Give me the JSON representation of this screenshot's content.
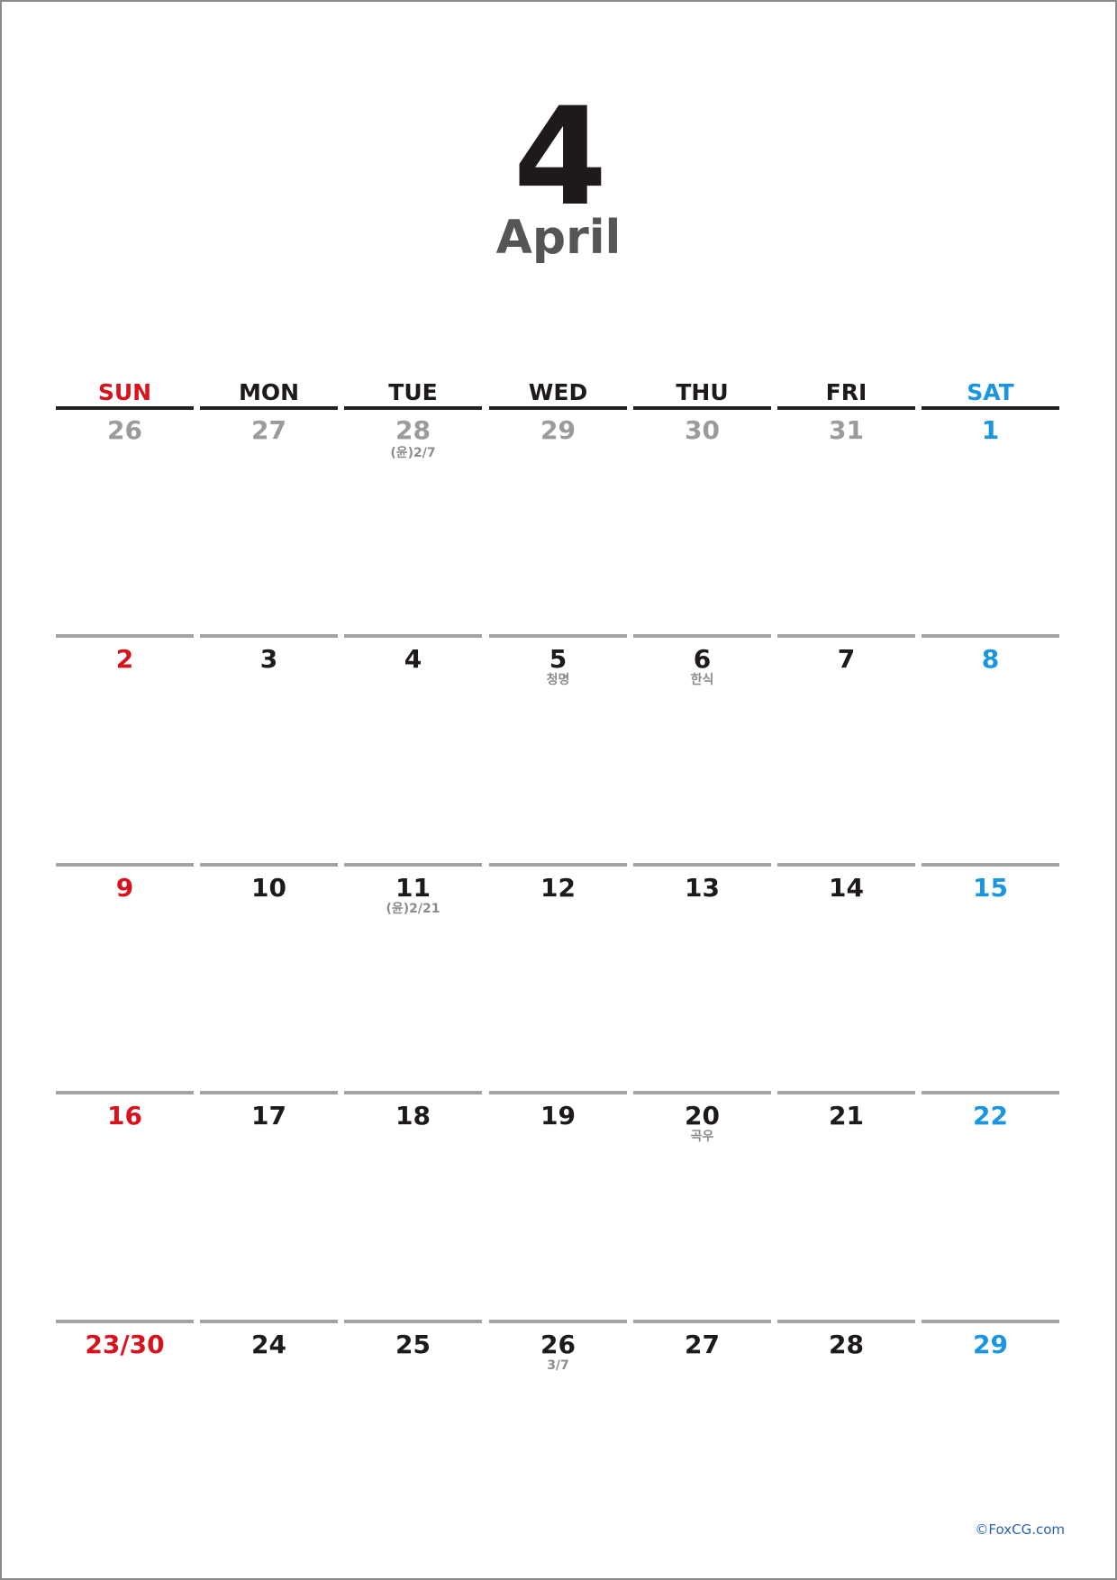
{
  "month": {
    "number": "4",
    "name": "April"
  },
  "colors": {
    "sunday": "#d7141d",
    "saturday": "#1a96e0",
    "weekday": "#1e1a1a",
    "other_month": "#9b9b9b",
    "note": "#8c8c8c"
  },
  "weekdays": [
    {
      "label": "SUN",
      "kind": "sunday"
    },
    {
      "label": "MON",
      "kind": "weekday"
    },
    {
      "label": "TUE",
      "kind": "weekday"
    },
    {
      "label": "WED",
      "kind": "weekday"
    },
    {
      "label": "THU",
      "kind": "weekday"
    },
    {
      "label": "FRI",
      "kind": "weekday"
    },
    {
      "label": "SAT",
      "kind": "saturday"
    }
  ],
  "weeks": [
    [
      {
        "day": "26",
        "kind": "other_month"
      },
      {
        "day": "27",
        "kind": "other_month"
      },
      {
        "day": "28",
        "kind": "other_month",
        "note": "(윤)2/7"
      },
      {
        "day": "29",
        "kind": "other_month"
      },
      {
        "day": "30",
        "kind": "other_month"
      },
      {
        "day": "31",
        "kind": "other_month"
      },
      {
        "day": "1",
        "kind": "saturday"
      }
    ],
    [
      {
        "day": "2",
        "kind": "sunday"
      },
      {
        "day": "3",
        "kind": "weekday"
      },
      {
        "day": "4",
        "kind": "weekday"
      },
      {
        "day": "5",
        "kind": "weekday",
        "note": "청명"
      },
      {
        "day": "6",
        "kind": "weekday",
        "note": "한식"
      },
      {
        "day": "7",
        "kind": "weekday"
      },
      {
        "day": "8",
        "kind": "saturday"
      }
    ],
    [
      {
        "day": "9",
        "kind": "sunday"
      },
      {
        "day": "10",
        "kind": "weekday"
      },
      {
        "day": "11",
        "kind": "weekday",
        "note": "(윤)2/21"
      },
      {
        "day": "12",
        "kind": "weekday"
      },
      {
        "day": "13",
        "kind": "weekday"
      },
      {
        "day": "14",
        "kind": "weekday"
      },
      {
        "day": "15",
        "kind": "saturday"
      }
    ],
    [
      {
        "day": "16",
        "kind": "sunday"
      },
      {
        "day": "17",
        "kind": "weekday"
      },
      {
        "day": "18",
        "kind": "weekday"
      },
      {
        "day": "19",
        "kind": "weekday"
      },
      {
        "day": "20",
        "kind": "weekday",
        "note": "곡우"
      },
      {
        "day": "21",
        "kind": "weekday"
      },
      {
        "day": "22",
        "kind": "saturday"
      }
    ],
    [
      {
        "day": "23/30",
        "kind": "sunday"
      },
      {
        "day": "24",
        "kind": "weekday"
      },
      {
        "day": "25",
        "kind": "weekday"
      },
      {
        "day": "26",
        "kind": "weekday",
        "note": "3/7"
      },
      {
        "day": "27",
        "kind": "weekday"
      },
      {
        "day": "28",
        "kind": "weekday"
      },
      {
        "day": "29",
        "kind": "saturday"
      }
    ]
  ],
  "footer": {
    "credit": "©FoxCG.com"
  }
}
